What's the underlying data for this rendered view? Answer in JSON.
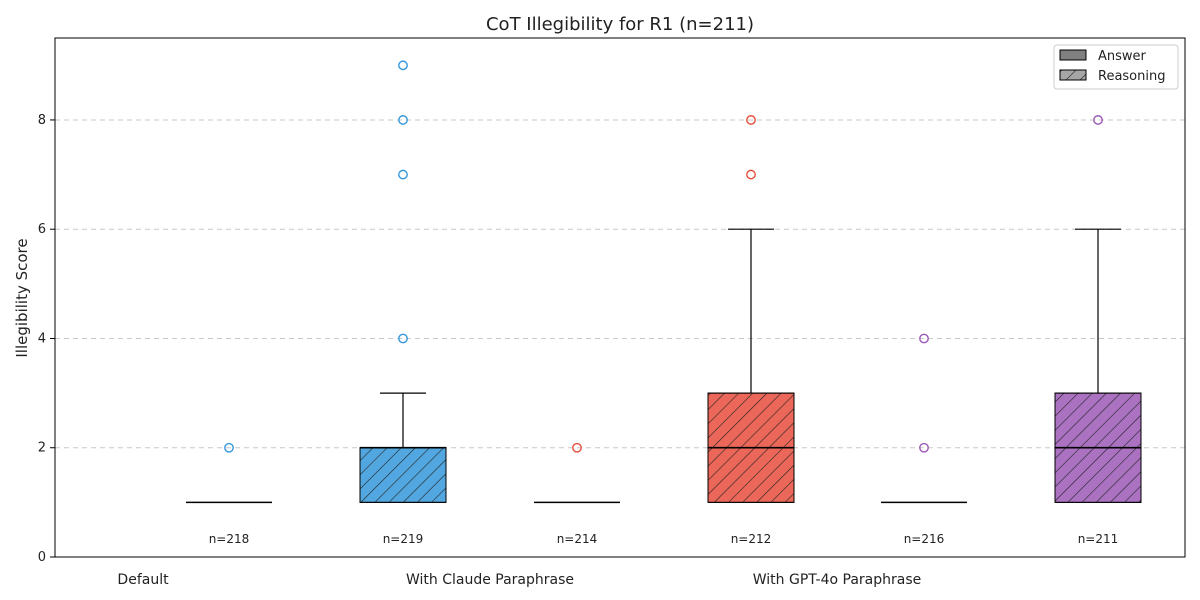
{
  "chart_data": {
    "type": "boxplot",
    "title": "CoT Illegibility for R1 (n=211)",
    "ylabel": "Illegibility Score",
    "xlabel": "",
    "ylim": [
      0,
      9.5
    ],
    "yticks": [
      0,
      2,
      4,
      6,
      8
    ],
    "grid": "horizontal-dashed",
    "legend_position": "top-right",
    "legend": [
      {
        "label": "Answer",
        "pattern": "solid",
        "color": "#808080"
      },
      {
        "label": "Reasoning",
        "pattern": "hatch",
        "color": "#a6a6a6"
      }
    ],
    "group_labels": [
      "Default",
      "With Claude Paraphrase",
      "With GPT-4o Paraphrase"
    ],
    "boxes": [
      {
        "group": "Default",
        "kind": "Answer",
        "color": "#3498db",
        "hatch": false,
        "min": 1,
        "q1": 1,
        "median": 1,
        "q3": 1,
        "max": 1,
        "outliers": [
          2
        ],
        "n_label": "n=218"
      },
      {
        "group": "With Claude Paraphrase",
        "kind": "Reasoning",
        "color": "#3498db",
        "hatch": true,
        "min": 1,
        "q1": 1,
        "median": 2,
        "q3": 2,
        "max": 3,
        "outliers": [
          4,
          7,
          8,
          9
        ],
        "n_label": "n=219"
      },
      {
        "group": "With Claude Paraphrase",
        "kind": "Answer",
        "color": "#e74c3c",
        "hatch": false,
        "min": 1,
        "q1": 1,
        "median": 1,
        "q3": 1,
        "max": 1,
        "outliers": [
          2
        ],
        "n_label": "n=214"
      },
      {
        "group": "With GPT-4o Paraphrase",
        "kind": "Reasoning",
        "color": "#e74c3c",
        "hatch": true,
        "min": 1,
        "q1": 1,
        "median": 2,
        "q3": 3,
        "max": 6,
        "outliers": [
          7,
          8
        ],
        "n_label": "n=212"
      },
      {
        "group": "With GPT-4o Paraphrase",
        "kind": "Answer",
        "color": "#9b59b6",
        "hatch": false,
        "min": 1,
        "q1": 1,
        "median": 1,
        "q3": 1,
        "max": 1,
        "outliers": [
          2,
          4
        ],
        "n_label": "n=216"
      },
      {
        "group": "With GPT-4o Paraphrase",
        "kind": "Reasoning",
        "color": "#9b59b6",
        "hatch": true,
        "min": 1,
        "q1": 1,
        "median": 2,
        "q3": 3,
        "max": 6,
        "outliers": [
          8
        ],
        "n_label": "n=211"
      }
    ]
  }
}
